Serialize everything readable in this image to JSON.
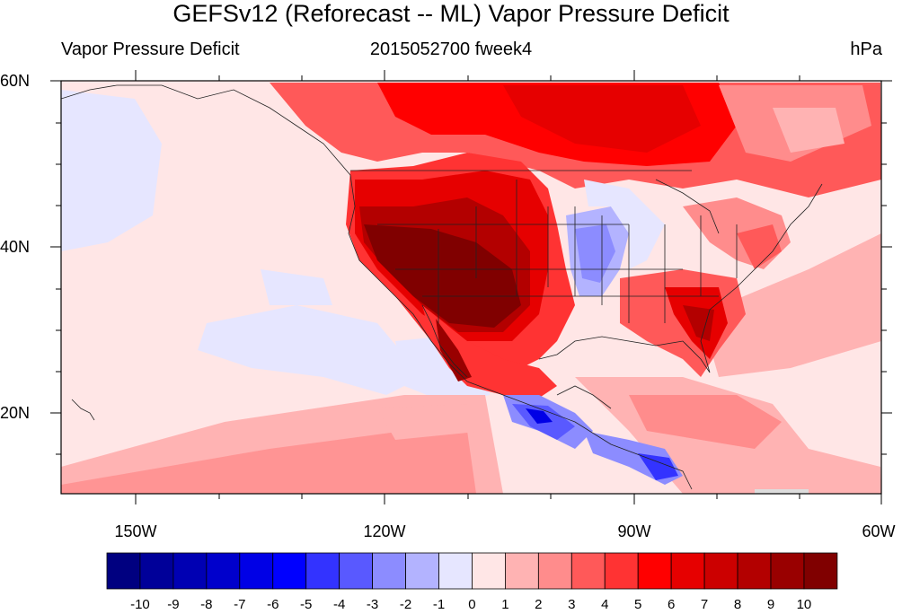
{
  "title": "GEFSv12 (Reforecast -- ML) Vapor Pressure Deficit",
  "left_subtitle": "Vapor Pressure Deficit",
  "center_subtitle": "2015052700 fweek4",
  "units": "hPa",
  "lat_labels": [
    "60N",
    "40N",
    "20N"
  ],
  "lon_labels": [
    "150W",
    "120W",
    "90W",
    "60W"
  ],
  "colorbar": {
    "labels": [
      "-10",
      "-9",
      "-8",
      "-7",
      "-6",
      "-5",
      "-4",
      "-3",
      "-2",
      "-1",
      "0",
      "1",
      "2",
      "3",
      "4",
      "5",
      "6",
      "7",
      "8",
      "9",
      "10"
    ],
    "colors": [
      "#000080",
      "#000099",
      "#0000B3",
      "#0000CC",
      "#0000E6",
      "#0000FF",
      "#3333FF",
      "#5959FF",
      "#8C8CFF",
      "#B3B3FF",
      "#E6E6FF",
      "#FFE6E6",
      "#FFB3B3",
      "#FF8C8C",
      "#FF5959",
      "#FF3333",
      "#FF0000",
      "#E60000",
      "#CC0000",
      "#B30000",
      "#990000",
      "#800000"
    ]
  }
}
